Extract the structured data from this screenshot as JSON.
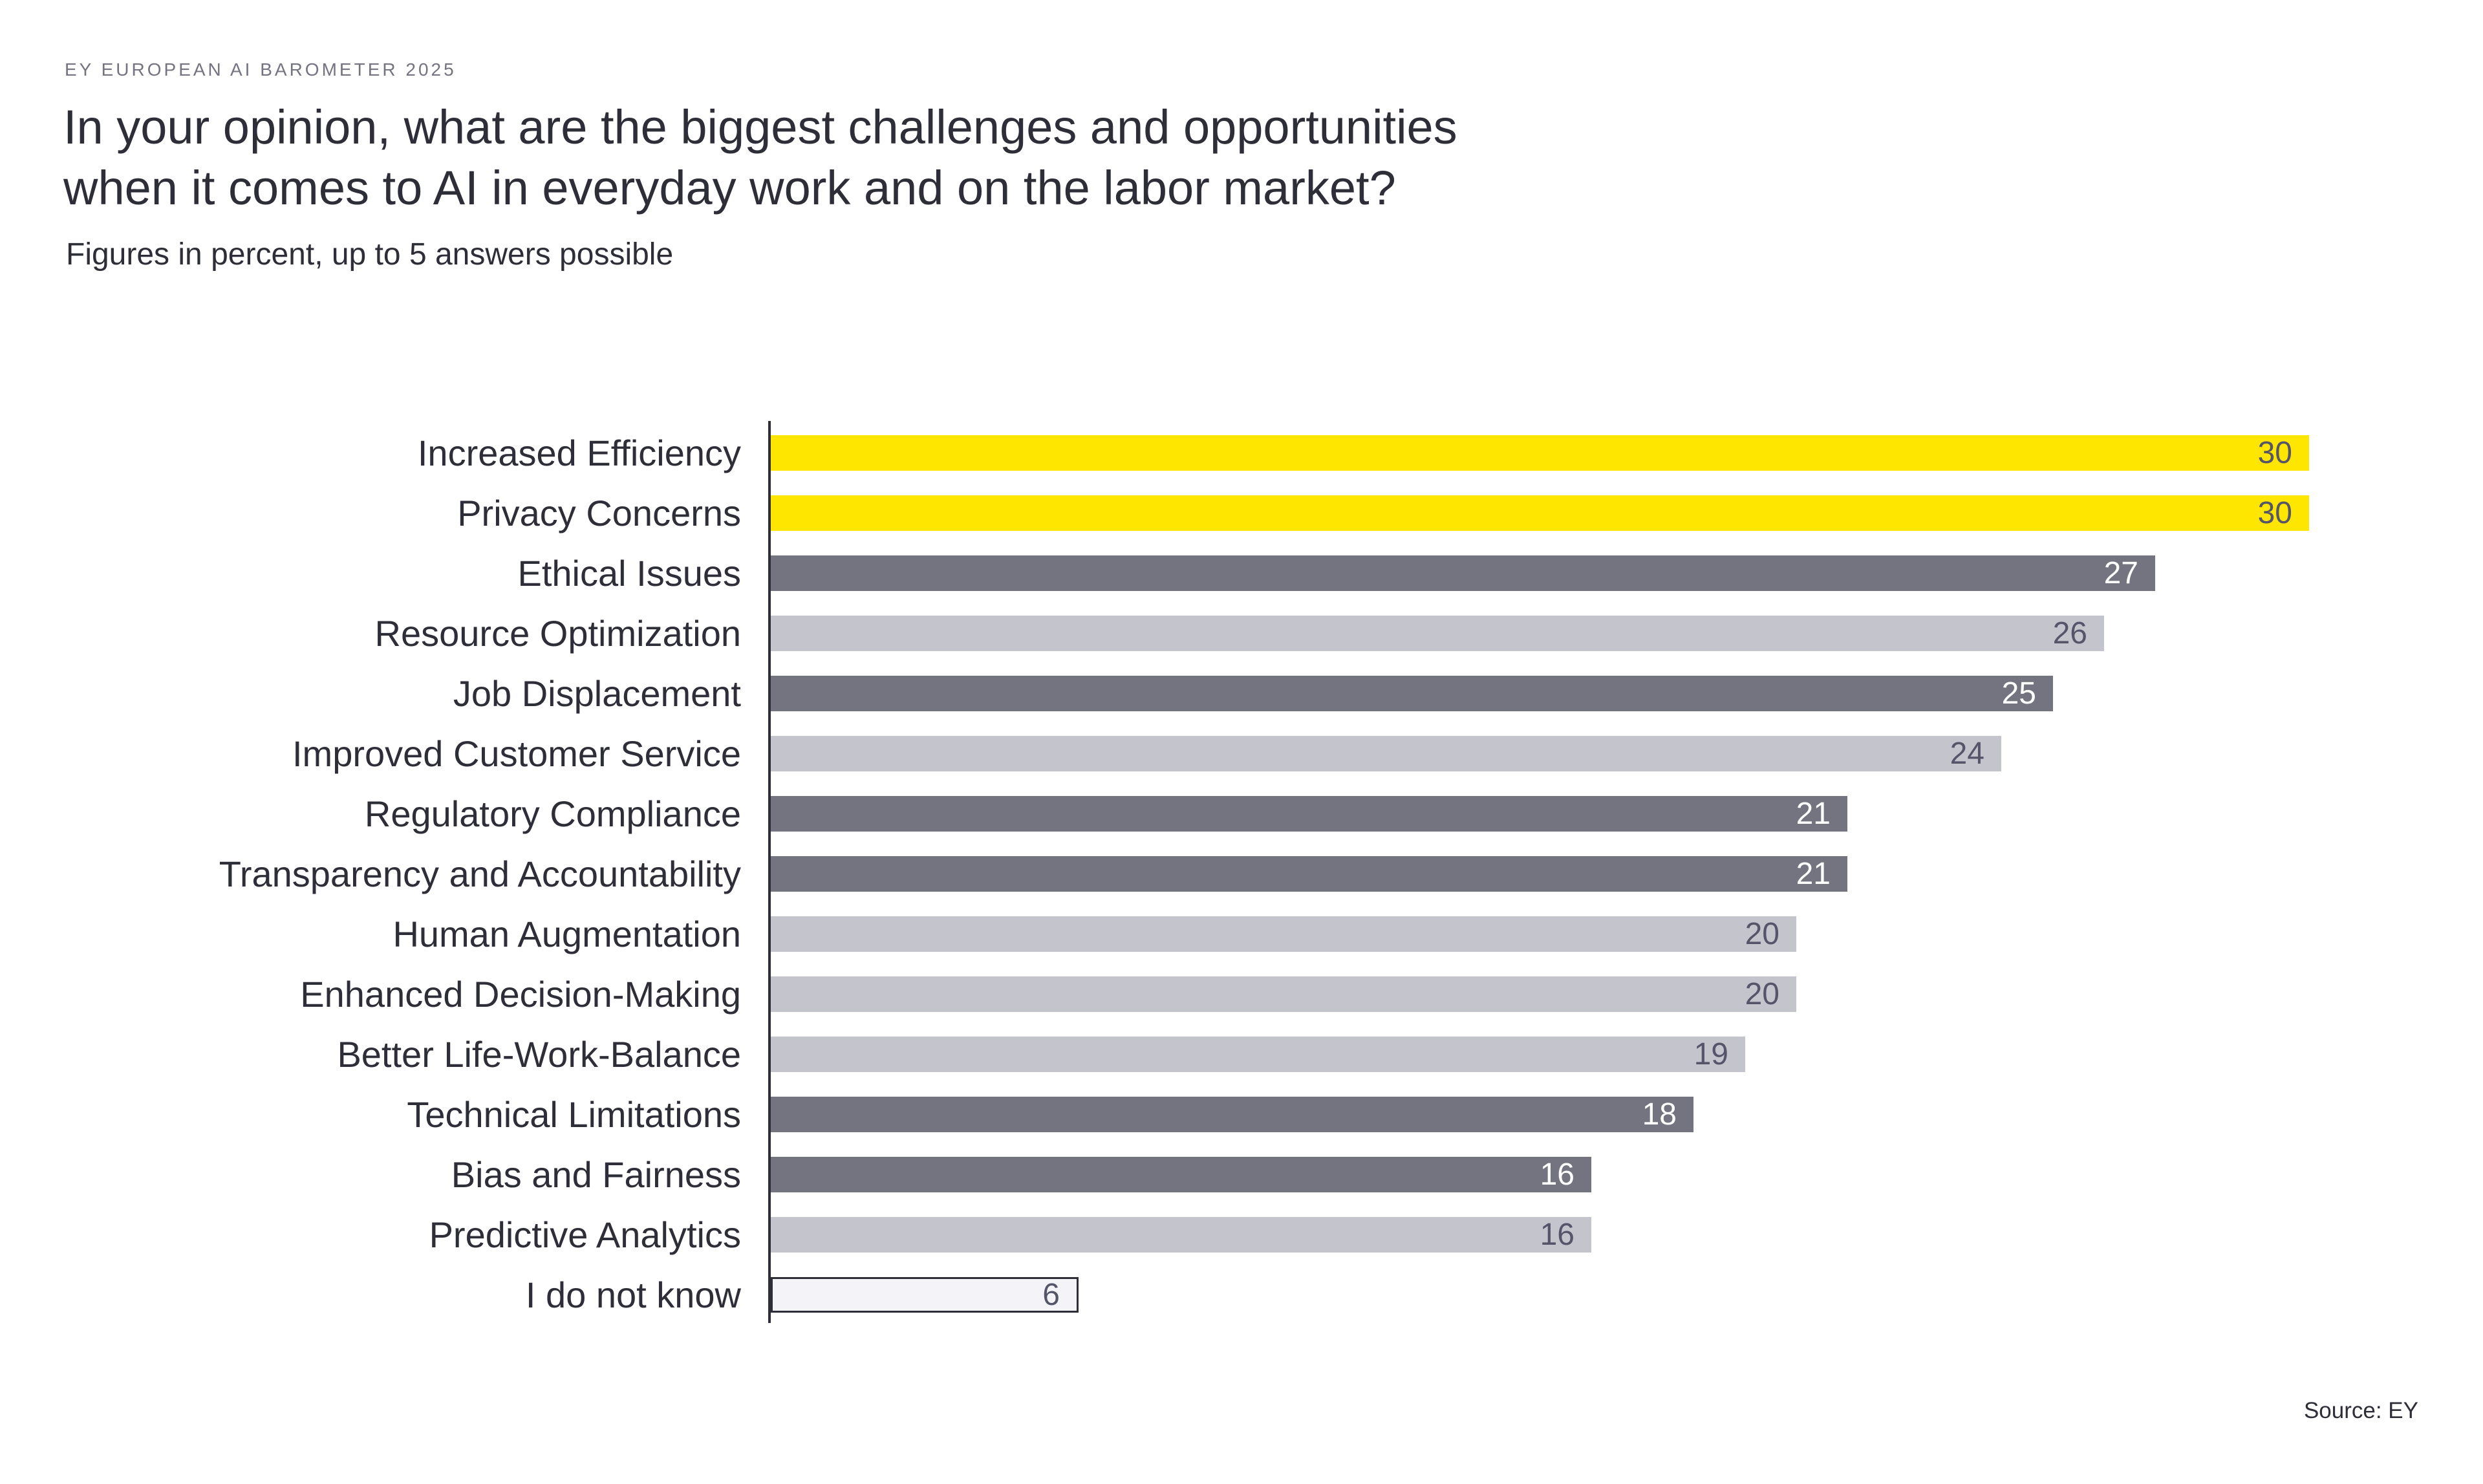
{
  "header": {
    "kicker": "EY EUROPEAN AI BAROMETER 2025",
    "title": "In your opinion, what are the biggest challenges and opportunities\nwhen it comes to AI in everyday work and on the labor market?",
    "subtitle": "Figures in percent, up to 5 answers possible"
  },
  "footer": {
    "source": "Source: EY"
  },
  "colors": {
    "highlight_yellow": "#ffe600",
    "dark_gray_bar": "#747480",
    "light_gray_bar": "#c4c4cd",
    "outline_bar_fill": "#f4f4f8",
    "ink": "#2e2e38",
    "kicker_gray": "#747480",
    "value_on_light": "#55556a",
    "value_on_dark": "#ffffff"
  },
  "chart_data": {
    "type": "bar",
    "orientation": "horizontal",
    "title": "In your opinion, what are the biggest challenges and opportunities when it comes to AI in everyday work and on the labor market?",
    "subtitle": "Figures in percent, up to 5 answers possible",
    "unit": "percent",
    "xlabel": "",
    "ylabel": "",
    "xlim": [
      0,
      30
    ],
    "grid": false,
    "legend": false,
    "value_label_position": "inside-end",
    "categories": [
      "Increased Efficiency",
      "Privacy Concerns",
      "Ethical Issues",
      "Resource Optimization",
      "Job Displacement",
      "Improved Customer Service",
      "Regulatory Compliance",
      "Transparency and Accountability",
      "Human Augmentation",
      "Enhanced Decision-Making",
      "Better Life-Work-Balance",
      "Technical Limitations",
      "Bias and Fairness",
      "Predictive Analytics",
      "I do not know"
    ],
    "values": [
      30,
      30,
      27,
      26,
      25,
      24,
      21,
      21,
      20,
      20,
      19,
      18,
      16,
      16,
      6
    ],
    "bar_styles": [
      "yellow",
      "yellow",
      "dark",
      "light",
      "dark",
      "light",
      "dark",
      "dark",
      "light",
      "light",
      "light",
      "dark",
      "dark",
      "light",
      "outline"
    ]
  }
}
